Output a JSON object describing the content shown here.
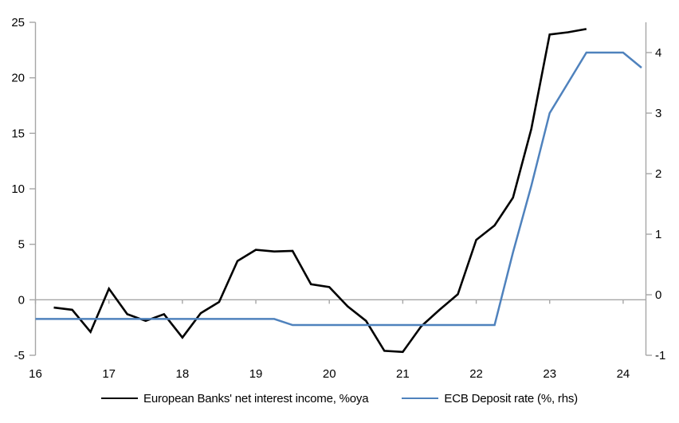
{
  "chart": {
    "title": "",
    "background": "#ffffff",
    "axis_color": "#a6a6a6",
    "text_color": "#000000"
  },
  "chart_data": {
    "type": "line",
    "title": "",
    "xlabel": "",
    "ylabel_left": "",
    "ylabel_right": "",
    "grid": "zero-line-only",
    "legend_position": "bottom-center",
    "xlim": [
      16,
      24.31
    ],
    "x_ticks": [
      16,
      17,
      18,
      19,
      20,
      21,
      22,
      23,
      24
    ],
    "axes": {
      "left": {
        "ylim": [
          -5,
          25
        ],
        "ticks": [
          25,
          20,
          15,
          10,
          5,
          0,
          -5
        ]
      },
      "right": {
        "ylim": [
          -1,
          4.5
        ],
        "ticks": [
          4,
          3,
          2,
          1,
          0,
          -1
        ]
      }
    },
    "series": [
      {
        "id": "nii",
        "name": "European Banks' net interest income, %oya",
        "axis": "left",
        "color": "#000000",
        "stroke_width": 2.6,
        "x": [
          16.25,
          16.5,
          16.75,
          17.0,
          17.25,
          17.5,
          17.75,
          18.0,
          18.25,
          18.5,
          18.75,
          19.0,
          19.25,
          19.5,
          19.75,
          20.0,
          20.25,
          20.5,
          20.75,
          21.0,
          21.25,
          21.5,
          21.75,
          22.0,
          22.25,
          22.5,
          22.75,
          23.0,
          23.25,
          23.5
        ],
        "values": [
          -0.7,
          -0.9,
          -2.9,
          1.0,
          -1.3,
          -1.9,
          -1.3,
          -3.4,
          -1.2,
          -0.2,
          3.5,
          4.5,
          4.35,
          4.4,
          1.4,
          1.15,
          -0.6,
          -1.9,
          -4.6,
          -4.7,
          -2.4,
          -0.9,
          0.5,
          5.4,
          6.7,
          9.2,
          15.4,
          23.9,
          24.1,
          24.4
        ]
      },
      {
        "id": "ecb-deposit-rate",
        "name": "ECB Deposit rate (%, rhs)",
        "axis": "right",
        "color": "#4f82bd",
        "stroke_width": 2.5,
        "x": [
          16.0,
          16.25,
          16.5,
          16.75,
          17.0,
          17.25,
          17.5,
          17.75,
          18.0,
          18.25,
          18.5,
          18.75,
          19.0,
          19.25,
          19.5,
          19.75,
          20.0,
          20.25,
          20.5,
          20.75,
          21.0,
          21.25,
          21.5,
          21.75,
          22.0,
          22.25,
          22.5,
          22.75,
          23.0,
          23.25,
          23.5,
          23.75,
          24.0,
          24.25
        ],
        "values": [
          -0.4,
          -0.4,
          -0.4,
          -0.4,
          -0.4,
          -0.4,
          -0.4,
          -0.4,
          -0.4,
          -0.4,
          -0.4,
          -0.4,
          -0.4,
          -0.4,
          -0.5,
          -0.5,
          -0.5,
          -0.5,
          -0.5,
          -0.5,
          -0.5,
          -0.5,
          -0.5,
          -0.5,
          -0.5,
          -0.5,
          0.7,
          1.8,
          3.0,
          3.5,
          4.0,
          4.0,
          4.0,
          3.75
        ]
      }
    ]
  }
}
